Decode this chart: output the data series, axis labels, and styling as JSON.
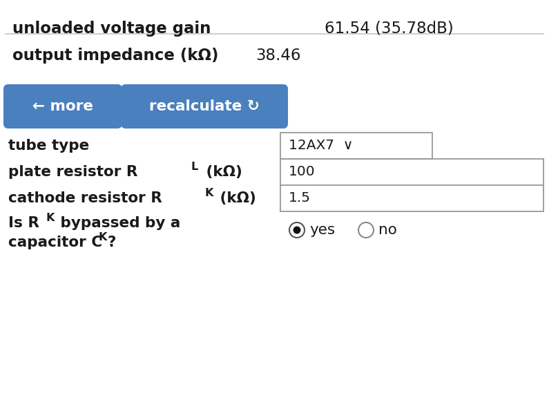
{
  "bg_color": "#ffffff",
  "label_color": "#1a1a1a",
  "line_color": "#c8c8c8",
  "button_color": "#4a80be",
  "button_text_color": "#ffffff",
  "input_border_color": "#999999",
  "input_bg_color": "#ffffff",
  "row1_label": "unloaded voltage gain",
  "row1_value": "61.54 (35.78dB)",
  "row2_label": "output impedance (kΩ)",
  "row2_value": "38.46",
  "btn1_text": "← more",
  "btn2_text": "recalculate ↻",
  "row3_label": "tube type",
  "row3_value": "12AX7  ∨",
  "row4_label_pre": "plate resistor R",
  "row4_label_sub": "L",
  "row4_label_post": " (kΩ)",
  "row4_value": "100",
  "row5_label_pre": "cathode resistor R",
  "row5_label_sub": "K",
  "row5_label_post": " (kΩ)",
  "row5_value": "1.5",
  "row6_label_pre1": "Is R",
  "row6_label_sub1": "K",
  "row6_label_post1": " bypassed by a",
  "row6_label_pre2": "capacitor C",
  "row6_label_sub2": "K",
  "row6_label_post2": "?",
  "radio_yes_label": "yes",
  "radio_no_label": "no"
}
